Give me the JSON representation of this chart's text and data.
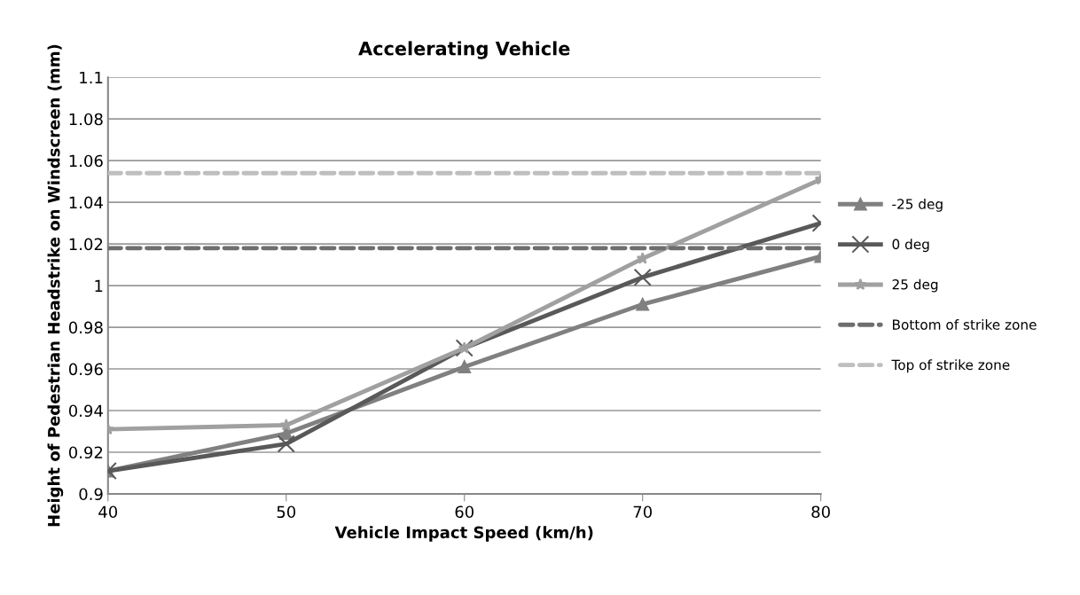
{
  "chart_data": {
    "type": "line",
    "title": "Accelerating Vehicle",
    "xlabel": "Vehicle Impact Speed (km/h)",
    "ylabel": "Height of Pedestrian Headstrike on Windscreen (mm)",
    "x": [
      40,
      50,
      60,
      70,
      80
    ],
    "series": [
      {
        "name": "-25 deg",
        "color": "#808080",
        "marker": "triangle",
        "line_style": "solid",
        "values": [
          0.911,
          0.929,
          0.961,
          0.991,
          1.014
        ]
      },
      {
        "name": "0 deg",
        "color": "#595959",
        "marker": "cross",
        "line_style": "solid",
        "values": [
          0.911,
          0.924,
          0.97,
          1.004,
          1.03
        ]
      },
      {
        "name": "25 deg",
        "color": "#a0a0a0",
        "marker": "star",
        "line_style": "solid",
        "values": [
          0.931,
          0.933,
          0.97,
          1.013,
          1.051
        ]
      },
      {
        "name": "Bottom of strike zone",
        "color": "#6e6e6e",
        "marker": "none",
        "line_style": "dashed",
        "values": [
          1.018,
          1.018,
          1.018,
          1.018,
          1.018
        ]
      },
      {
        "name": "Top of strike zone",
        "color": "#bfbfbf",
        "marker": "none",
        "line_style": "dashed",
        "values": [
          1.054,
          1.054,
          1.054,
          1.054,
          1.054
        ]
      }
    ],
    "xlim": [
      40,
      80
    ],
    "xticks": [
      40,
      50,
      60,
      70,
      80
    ],
    "ylim": [
      0.9,
      1.1
    ],
    "yticks": [
      {
        "value": 0.9,
        "label": "0.9"
      },
      0.92,
      0.94,
      0.96,
      0.98,
      {
        "value": 1.0,
        "label": "1"
      },
      1.02,
      1.04,
      1.06,
      1.08,
      {
        "value": 1.1,
        "label": "1.1"
      }
    ],
    "grid": "y",
    "legend": "right"
  }
}
